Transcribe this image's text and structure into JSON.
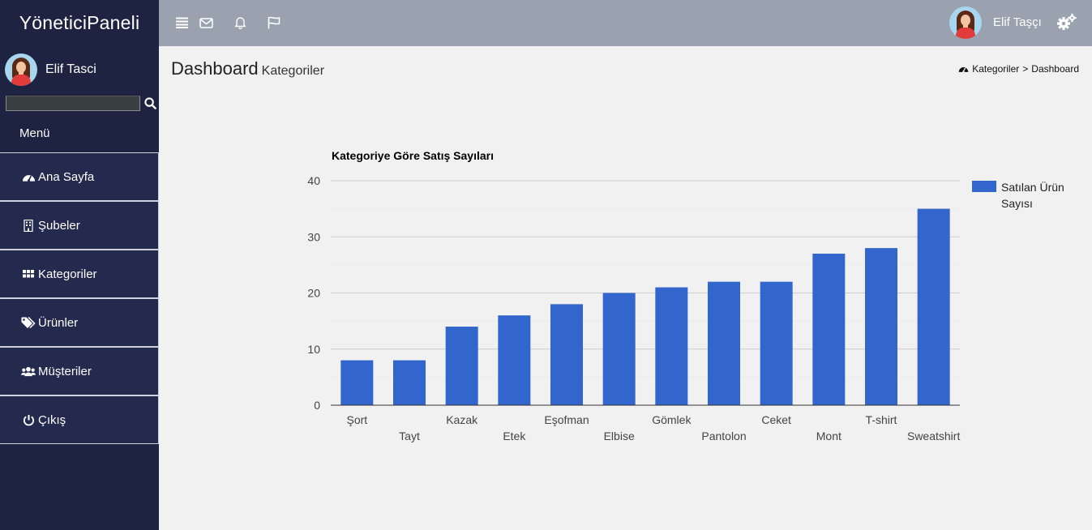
{
  "app": {
    "brand": "YöneticiPaneli"
  },
  "sidebar": {
    "user_name": "Elif Tasci",
    "search": {
      "value": "",
      "placeholder": ""
    },
    "menu_label": "Menü",
    "items": [
      {
        "label": "Ana Sayfa",
        "icon": "dashboard-icon"
      },
      {
        "label": "Şubeler",
        "icon": "building-icon"
      },
      {
        "label": "Kategoriler",
        "icon": "grid-icon"
      },
      {
        "label": "Ürünler",
        "icon": "tags-icon"
      },
      {
        "label": "Müşteriler",
        "icon": "users-icon"
      },
      {
        "label": "Çıkış",
        "icon": "power-icon"
      }
    ]
  },
  "topbar": {
    "icons": [
      "list-icon",
      "envelope-icon",
      "bell-icon",
      "flag-icon"
    ],
    "user_name": "Elif Taşçı",
    "settings_icon": "gears-icon"
  },
  "content": {
    "title": "Dashboard",
    "subtitle": "Kategoriler",
    "breadcrumb": {
      "first": "Kategoriler",
      "separator": ">",
      "second": "Dashboard"
    }
  },
  "colors": {
    "sidebar_bg": "#1e2342",
    "topbar_bg": "#99a2ae",
    "bar": "#3366cc"
  },
  "chart_data": {
    "type": "bar",
    "title": "Kategoriye Göre Satış Sayıları",
    "categories": [
      "Şort",
      "Tayt",
      "Kazak",
      "Etek",
      "Eşofman",
      "Elbise",
      "Gömlek",
      "Pantolon",
      "Ceket",
      "Mont",
      "T-shirt",
      "Sweatshirt"
    ],
    "series": [
      {
        "name": "Satılan Ürün Sayısı",
        "values": [
          8,
          8,
          14,
          16,
          18,
          20,
          21,
          22,
          22,
          27,
          28,
          35
        ]
      }
    ],
    "ylim": [
      0,
      40
    ],
    "yticks": [
      0,
      10,
      20,
      30,
      40
    ],
    "grid": true,
    "legend": "right"
  }
}
